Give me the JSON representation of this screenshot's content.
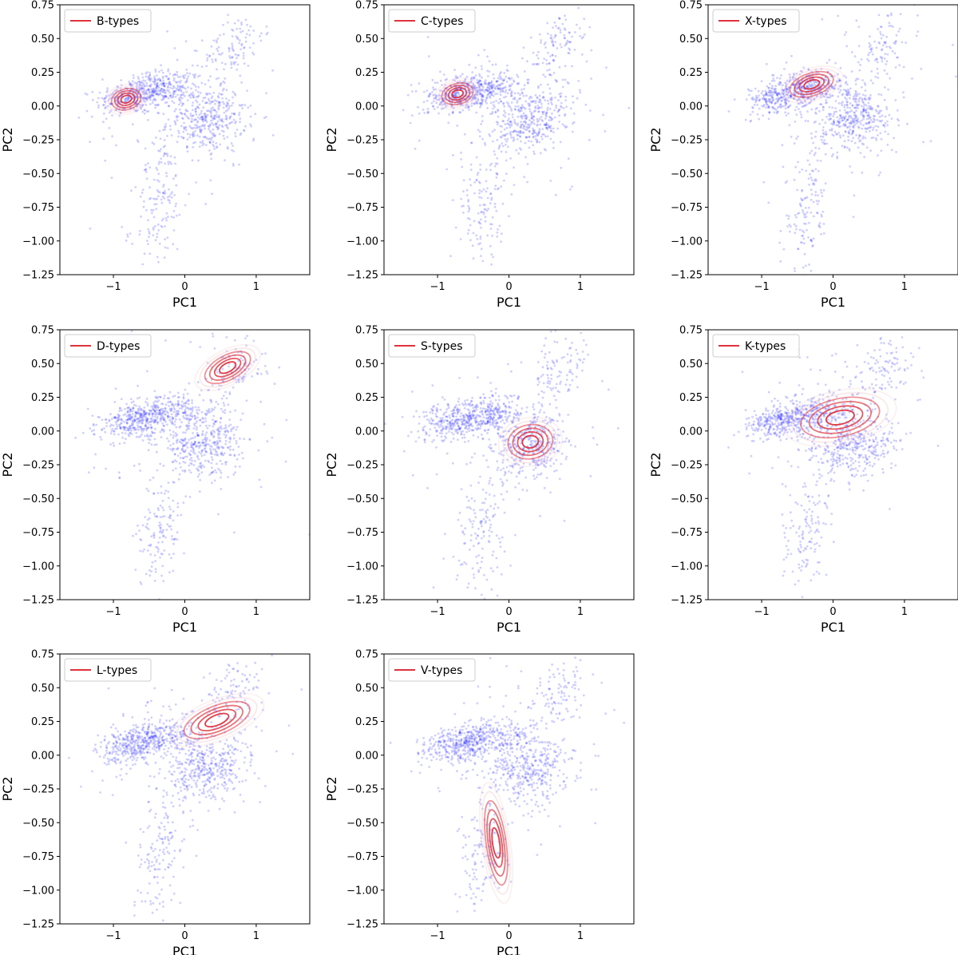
{
  "figure": {
    "colors": {
      "points": "#2a2aff",
      "contour_strong": "#e0323c",
      "contour_faint": "#f4c6c9",
      "axis": "#000000",
      "legend_border": "#cccccc"
    }
  },
  "chart_data": [
    {
      "type": "scatter",
      "legend": "B-types",
      "xlabel": "PC1",
      "ylabel": "PC2",
      "xlim": [
        -1.75,
        1.75
      ],
      "ylim": [
        -1.25,
        0.75
      ],
      "xticks": [
        -1,
        0,
        1
      ],
      "xtick_labels": [
        "−1",
        "0",
        "1"
      ],
      "yticks": [
        0.75,
        0.5,
        0.25,
        0.0,
        -0.25,
        -0.5,
        -0.75,
        -1.0,
        -1.25
      ],
      "ytick_labels": [
        "0.75",
        "0.50",
        "0.25",
        "0.00",
        "−0.25",
        "−0.50",
        "−0.75",
        "−1.00",
        "−1.25"
      ],
      "legend_loc": "upper-left",
      "density_peak": [
        -0.82,
        0.05
      ]
    },
    {
      "type": "scatter",
      "legend": "C-types",
      "xlabel": "PC1",
      "ylabel": "PC2",
      "xlim": [
        -1.75,
        1.75
      ],
      "ylim": [
        -1.25,
        0.75
      ],
      "xticks": [
        -1,
        0,
        1
      ],
      "xtick_labels": [
        "−1",
        "0",
        "1"
      ],
      "yticks": [
        0.75,
        0.5,
        0.25,
        0.0,
        -0.25,
        -0.5,
        -0.75,
        -1.0,
        -1.25
      ],
      "ytick_labels": [
        "0.75",
        "0.50",
        "0.25",
        "0.00",
        "−0.25",
        "−0.50",
        "−0.75",
        "−1.00",
        "−1.25"
      ],
      "legend_loc": "upper-left",
      "density_peak": [
        -0.72,
        0.09
      ]
    },
    {
      "type": "scatter",
      "legend": "X-types",
      "xlabel": "PC1",
      "ylabel": "PC2",
      "xlim": [
        -1.75,
        1.75
      ],
      "ylim": [
        -1.25,
        0.75
      ],
      "xticks": [
        -1,
        0,
        1
      ],
      "xtick_labels": [
        "−1",
        "0",
        "1"
      ],
      "yticks": [
        0.75,
        0.5,
        0.25,
        0.0,
        -0.25,
        -0.5,
        -0.75,
        -1.0,
        -1.25
      ],
      "ytick_labels": [
        "0.75",
        "0.50",
        "0.25",
        "0.00",
        "−0.25",
        "−0.50",
        "−0.75",
        "−1.00",
        "−1.25"
      ],
      "legend_loc": "upper-left",
      "density_peak": [
        -0.3,
        0.16
      ]
    },
    {
      "type": "scatter",
      "legend": "D-types",
      "xlabel": "PC1",
      "ylabel": "PC2",
      "xlim": [
        -1.75,
        1.75
      ],
      "ylim": [
        -1.25,
        0.75
      ],
      "xticks": [
        -1,
        0,
        1
      ],
      "xtick_labels": [
        "−1",
        "0",
        "1"
      ],
      "yticks": [
        0.75,
        0.5,
        0.25,
        0.0,
        -0.25,
        -0.5,
        -0.75,
        -1.0,
        -1.25
      ],
      "ytick_labels": [
        "0.75",
        "0.50",
        "0.25",
        "0.00",
        "−0.25",
        "−0.50",
        "−0.75",
        "−1.00",
        "−1.25"
      ],
      "legend_loc": "upper-left",
      "density_peak": [
        0.6,
        0.47
      ]
    },
    {
      "type": "scatter",
      "legend": "S-types",
      "xlabel": "PC1",
      "ylabel": "PC2",
      "xlim": [
        -1.75,
        1.75
      ],
      "ylim": [
        -1.25,
        0.75
      ],
      "xticks": [
        -1,
        0,
        1
      ],
      "xtick_labels": [
        "−1",
        "0",
        "1"
      ],
      "yticks": [
        0.75,
        0.5,
        0.25,
        0.0,
        -0.25,
        -0.5,
        -0.75,
        -1.0,
        -1.25
      ],
      "ytick_labels": [
        "0.75",
        "0.50",
        "0.25",
        "0.00",
        "−0.25",
        "−0.50",
        "−0.75",
        "−1.00",
        "−1.25"
      ],
      "legend_loc": "upper-left",
      "density_peak": [
        0.3,
        -0.08
      ]
    },
    {
      "type": "scatter",
      "legend": "K-types",
      "xlabel": "PC1",
      "ylabel": "PC2",
      "xlim": [
        -1.75,
        1.75
      ],
      "ylim": [
        -1.25,
        0.75
      ],
      "xticks": [
        -1,
        0,
        1
      ],
      "xtick_labels": [
        "−1",
        "0",
        "1"
      ],
      "yticks": [
        0.75,
        0.5,
        0.25,
        0.0,
        -0.25,
        -0.5,
        -0.75,
        -1.0,
        -1.25
      ],
      "ytick_labels": [
        "0.75",
        "0.50",
        "0.25",
        "0.00",
        "−0.25",
        "−0.50",
        "−0.75",
        "−1.00",
        "−1.25"
      ],
      "legend_loc": "upper-left",
      "density_peak": [
        0.1,
        0.1
      ]
    },
    {
      "type": "scatter",
      "legend": "L-types",
      "xlabel": "PC1",
      "ylabel": "PC2",
      "xlim": [
        -1.75,
        1.75
      ],
      "ylim": [
        -1.25,
        0.75
      ],
      "xticks": [
        -1,
        0,
        1
      ],
      "xtick_labels": [
        "−1",
        "0",
        "1"
      ],
      "yticks": [
        0.75,
        0.5,
        0.25,
        0.0,
        -0.25,
        -0.5,
        -0.75,
        -1.0,
        -1.25
      ],
      "ytick_labels": [
        "0.75",
        "0.50",
        "0.25",
        "0.00",
        "−0.25",
        "−0.50",
        "−0.75",
        "−1.00",
        "−1.25"
      ],
      "legend_loc": "upper-left",
      "density_peak": [
        0.45,
        0.26
      ]
    },
    {
      "type": "scatter",
      "legend": "V-types",
      "xlabel": "PC1",
      "ylabel": "PC2",
      "xlim": [
        -1.75,
        1.75
      ],
      "ylim": [
        -1.25,
        0.75
      ],
      "xticks": [
        -1,
        0,
        1
      ],
      "xtick_labels": [
        "−1",
        "0",
        "1"
      ],
      "yticks": [
        0.75,
        0.5,
        0.25,
        0.0,
        -0.25,
        -0.5,
        -0.75,
        -1.0,
        -1.25
      ],
      "ytick_labels": [
        "0.75",
        "0.50",
        "0.25",
        "0.00",
        "−0.25",
        "−0.50",
        "−0.75",
        "−1.00",
        "−1.25"
      ],
      "legend_loc": "upper-left",
      "density_peak": [
        -0.18,
        -0.65
      ]
    }
  ]
}
